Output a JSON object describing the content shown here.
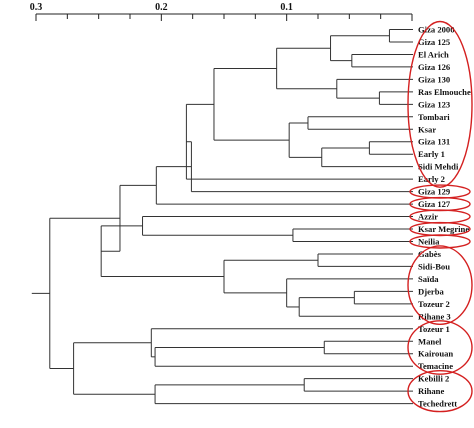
{
  "scale": {
    "ticks": [
      {
        "label": "0.3",
        "value": 0.3
      },
      {
        "label": "0.2",
        "value": 0.2
      },
      {
        "label": "0.1",
        "value": 0.1
      }
    ],
    "range": [
      0.3,
      0.0
    ]
  },
  "leaves": [
    "Giza 2000",
    "Giza 125",
    "El Arich",
    "Giza 126",
    "Giza 130",
    "Ras Elmouche",
    "Giza 123",
    "Tombari",
    "Ksar",
    "Giza 131",
    "Early 1",
    "Sidi Mehdi",
    "Early 2",
    "Giza 129",
    "Giza 127",
    "Azzir",
    "Ksar Megrine",
    "Neilia",
    "Gabès",
    "Sidi-Bou",
    "Saïda",
    "Djerba",
    "Tozeur 2",
    "Rihane 3",
    "Tozeur 1",
    "Manel",
    "Kairouan",
    "Temacine",
    "Kebilli 2",
    "Rihane",
    "Techedrett"
  ],
  "tree": {
    "h": 0.289,
    "c": [
      {
        "h": 0.233,
        "c": [
          {
            "h": 0.204,
            "c": [
              {
                "h": 0.176,
                "c": [
                  {
                    "h": 0.18,
                    "c": [
                      {
                        "h": 0.158,
                        "c": [
                          {
                            "h": 0.108,
                            "c": [
                              {
                                "h": 0.065,
                                "c": [
                                  {
                                    "h": 0.018,
                                    "c": [
                                      {
                                        "l": 0
                                      },
                                      {
                                        "l": 1
                                      }
                                    ]
                                  },
                                  {
                                    "h": 0.048,
                                    "c": [
                                      {
                                        "l": 2
                                      },
                                      {
                                        "l": 3
                                      }
                                    ]
                                  }
                                ]
                              },
                              {
                                "h": 0.06,
                                "c": [
                                  {
                                    "l": 4
                                  },
                                  {
                                    "h": 0.026,
                                    "c": [
                                      {
                                        "l": 5
                                      },
                                      {
                                        "l": 6
                                      }
                                    ]
                                  }
                                ]
                              }
                            ]
                          },
                          {
                            "h": 0.098,
                            "c": [
                              {
                                "h": 0.083,
                                "c": [
                                  {
                                    "l": 7
                                  },
                                  {
                                    "l": 8
                                  }
                                ]
                              },
                              {
                                "h": 0.072,
                                "c": [
                                  {
                                    "h": 0.034,
                                    "c": [
                                      {
                                        "l": 9
                                      },
                                      {
                                        "l": 10
                                      }
                                    ]
                                  },
                                  {
                                    "l": 11
                                  }
                                ]
                              }
                            ]
                          }
                        ]
                      },
                      {
                        "l": 12
                      }
                    ]
                  },
                  {
                    "l": 13
                  }
                ]
              },
              {
                "l": 14
              }
            ]
          },
          {
            "h": 0.248,
            "c": [
              {
                "h": 0.215,
                "c": [
                  {
                    "l": 15
                  },
                  {
                    "h": 0.095,
                    "c": [
                      {
                        "l": 16
                      },
                      {
                        "l": 17
                      }
                    ]
                  }
                ]
              },
              {
                "h": 0.219,
                "c": [
                  {
                    "h": 0.15,
                    "c": [
                      {
                        "h": 0.075,
                        "c": [
                          {
                            "l": 18
                          },
                          {
                            "l": 19
                          }
                        ]
                      },
                      {
                        "h": 0.1,
                        "c": [
                          {
                            "l": 20
                          },
                          {
                            "h": 0.09,
                            "c": [
                              {
                                "h": 0.046,
                                "c": [
                                  {
                                    "l": 21
                                  },
                                  {
                                    "l": 22
                                  }
                                ]
                              },
                              {
                                "l": 23
                              }
                            ]
                          }
                        ]
                      }
                    ]
                  }
                ]
              }
            ]
          }
        ]
      },
      {
        "h": 0.27,
        "c": [
          {
            "h": 0.208,
            "c": [
              {
                "l": 24
              },
              {
                "h": 0.205,
                "c": [
                  {
                    "h": 0.07,
                    "c": [
                      {
                        "l": 25
                      },
                      {
                        "l": 26
                      }
                    ]
                  },
                  {
                    "l": 27
                  }
                ]
              }
            ]
          },
          {
            "h": 0.205,
            "c": [
              {
                "h": 0.086,
                "c": [
                  {
                    "l": 28
                  },
                  {
                    "l": 29
                  }
                ]
              },
              {
                "l": 30
              }
            ]
          }
        ]
      }
    ]
  },
  "groups": [
    {
      "first": 0,
      "last": 12,
      "color": "#d42020"
    },
    {
      "first": 13,
      "last": 13,
      "color": "#d42020"
    },
    {
      "first": 14,
      "last": 14,
      "color": "#d42020"
    },
    {
      "first": 15,
      "last": 15,
      "color": "#d42020"
    },
    {
      "first": 16,
      "last": 16,
      "color": "#d42020"
    },
    {
      "first": 17,
      "last": 17,
      "color": "#d42020"
    },
    {
      "first": 18,
      "last": 23,
      "color": "#d42020"
    },
    {
      "first": 24,
      "last": 27,
      "color": "#d42020"
    },
    {
      "first": 28,
      "last": 30,
      "color": "#d42020"
    }
  ]
}
